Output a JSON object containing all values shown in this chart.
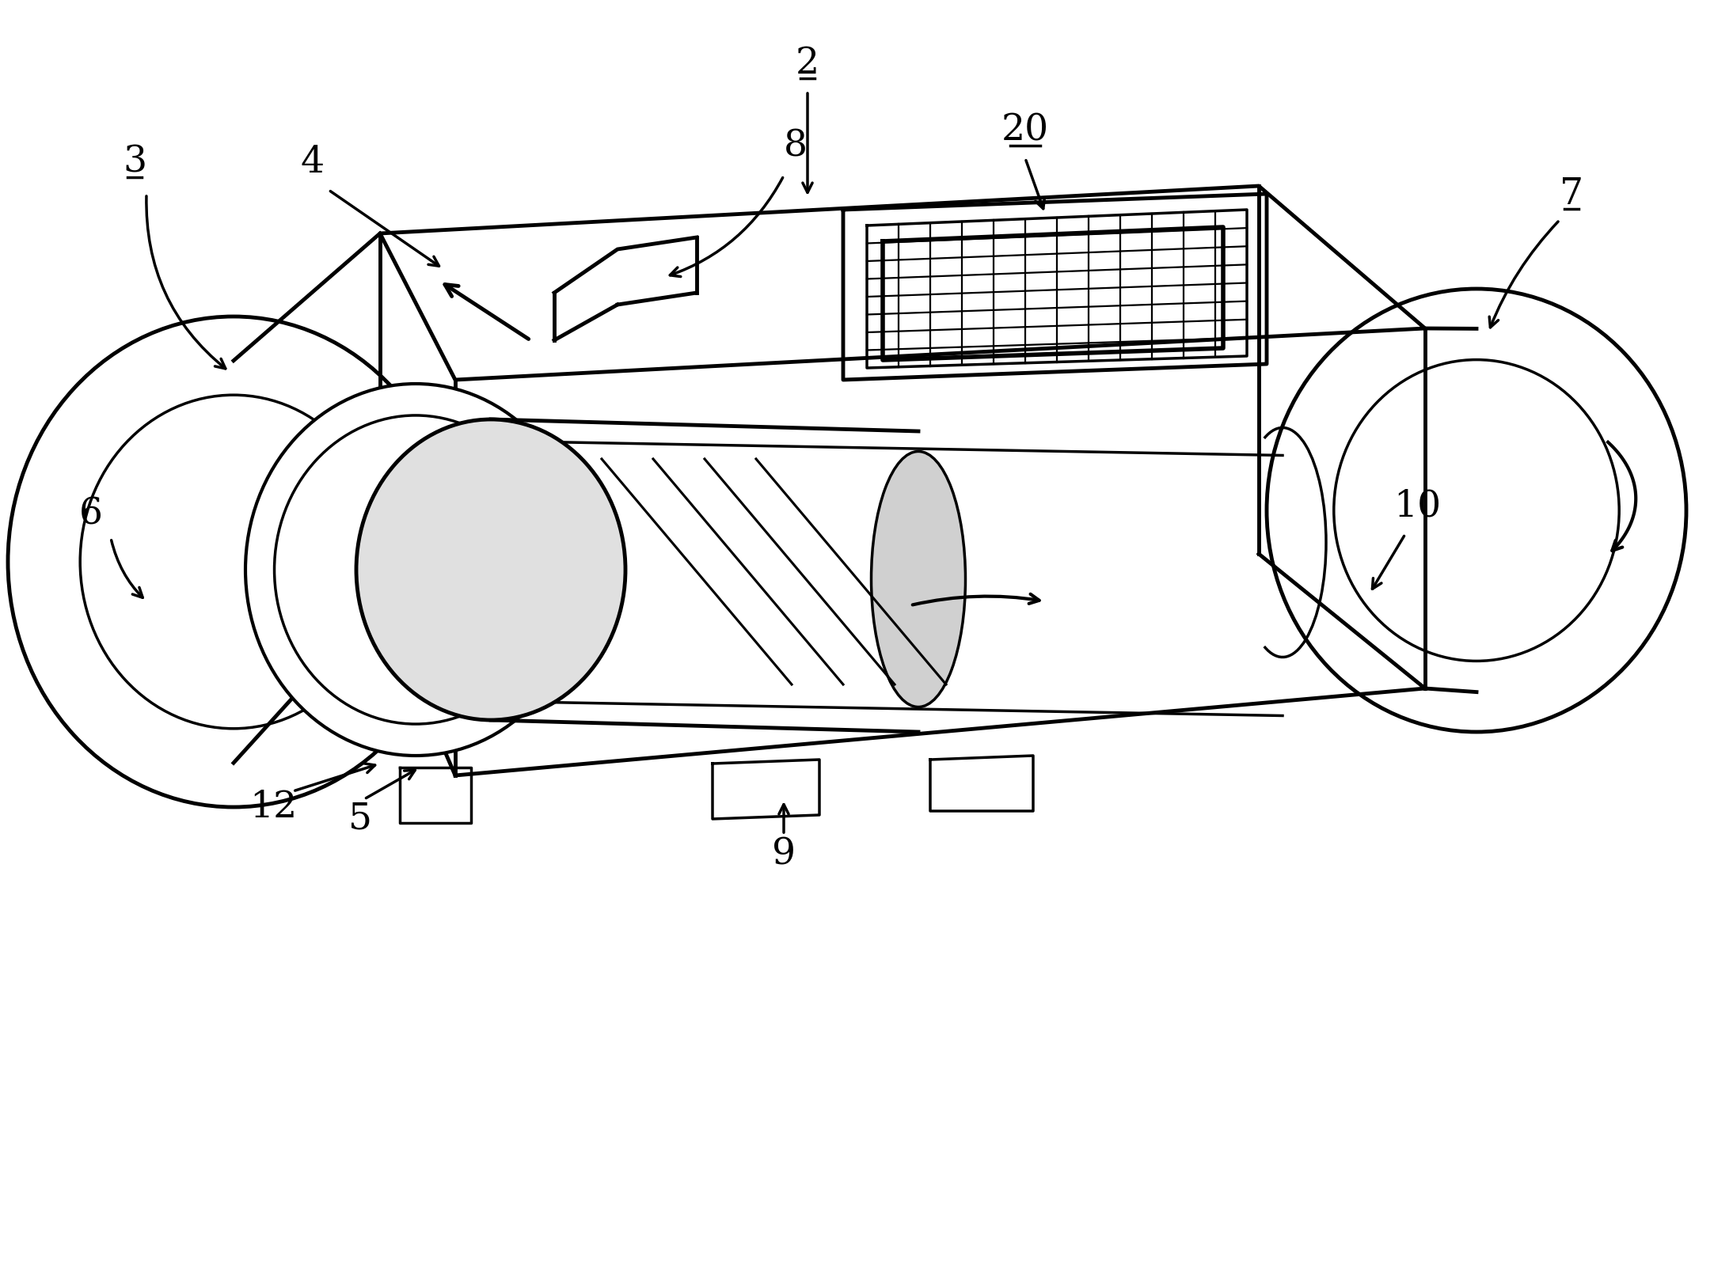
{
  "bg_color": "#ffffff",
  "line_color": "#000000",
  "lw_main": 3.5,
  "lw_detail": 2.5,
  "lw_thin": 1.8,
  "fig_width": 21.65,
  "fig_height": 16.0,
  "font_size": 34,
  "underlined": [
    "2",
    "3",
    "20",
    "7"
  ]
}
